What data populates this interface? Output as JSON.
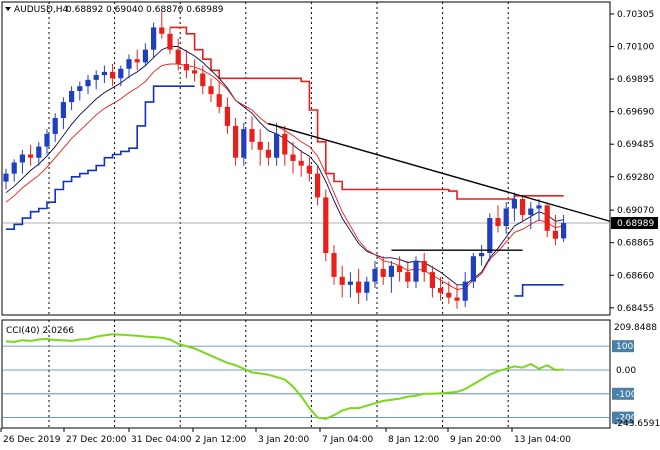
{
  "header": {
    "symbol": "AUDUSD,H4",
    "ohlc": "0.68892 0.69040 0.68870 0.68989"
  },
  "indicator": {
    "label": "CCI(40) 2.0266",
    "levels": [
      "100",
      "0.00",
      "-100",
      "-200"
    ],
    "max_label": "209.8488",
    "min_label": "-243.6591"
  },
  "colors": {
    "bull": "#1f3fbf",
    "bear": "#e8201c",
    "upper_band": "#e8201c",
    "lower_band": "#1030c0",
    "fast_ma": "#e8201c",
    "slow_ma": "#0a0a50",
    "cci": "#7cd61c",
    "trendline": "#000000",
    "price_tag": "#000000"
  },
  "chart_data": {
    "type": "candlestick",
    "y_axis_ticks": [
      "0.70305",
      "0.70100",
      "0.69895",
      "0.69690",
      "0.69485",
      "0.69280",
      "0.69070",
      "0.68865",
      "0.68660",
      "0.68455"
    ],
    "x_axis_labels": [
      "26 Dec 2019",
      "27 Dec 20:00",
      "31 Dec 04:00",
      "2 Jan 12:00",
      "3 Jan 20:00",
      "7 Jan 04:00",
      "8 Jan 12:00",
      "9 Jan 20:00",
      "13 Jan 04:00"
    ],
    "current_price": "0.68989",
    "ylim": [
      0.6841,
      0.7038
    ],
    "candles": [
      [
        0.6925,
        0.6933,
        0.692,
        0.693
      ],
      [
        0.693,
        0.6939,
        0.6925,
        0.6937
      ],
      [
        0.6937,
        0.6945,
        0.693,
        0.6942
      ],
      [
        0.6942,
        0.6948,
        0.6935,
        0.694
      ],
      [
        0.694,
        0.695,
        0.6935,
        0.6947
      ],
      [
        0.6947,
        0.6958,
        0.6942,
        0.6955
      ],
      [
        0.6955,
        0.6968,
        0.695,
        0.6965
      ],
      [
        0.6965,
        0.6978,
        0.6958,
        0.6975
      ],
      [
        0.6975,
        0.6985,
        0.697,
        0.6982
      ],
      [
        0.6982,
        0.6988,
        0.6976,
        0.6985
      ],
      [
        0.6985,
        0.6992,
        0.698,
        0.6989
      ],
      [
        0.6989,
        0.6995,
        0.6983,
        0.6992
      ],
      [
        0.6992,
        0.6998,
        0.6987,
        0.6994
      ],
      [
        0.6994,
        0.6999,
        0.6985,
        0.699
      ],
      [
        0.699,
        0.6998,
        0.6985,
        0.6996
      ],
      [
        0.6996,
        0.7005,
        0.699,
        0.7002
      ],
      [
        0.7002,
        0.7008,
        0.6995,
        0.7
      ],
      [
        0.7,
        0.7012,
        0.6998,
        0.7008
      ],
      [
        0.7008,
        0.7025,
        0.7003,
        0.7022
      ],
      [
        0.7022,
        0.7032,
        0.7015,
        0.7018
      ],
      [
        0.7018,
        0.7022,
        0.7005,
        0.7008
      ],
      [
        0.7008,
        0.7015,
        0.6995,
        0.6999
      ],
      [
        0.6999,
        0.7008,
        0.699,
        0.6995
      ],
      [
        0.6995,
        0.7002,
        0.6988,
        0.6993
      ],
      [
        0.6993,
        0.6998,
        0.698,
        0.6985
      ],
      [
        0.6985,
        0.699,
        0.6975,
        0.698
      ],
      [
        0.698,
        0.6988,
        0.6968,
        0.6972
      ],
      [
        0.6972,
        0.6978,
        0.6955,
        0.696
      ],
      [
        0.696,
        0.6965,
        0.6935,
        0.694
      ],
      [
        0.694,
        0.6962,
        0.6935,
        0.6958
      ],
      [
        0.6958,
        0.6966,
        0.6945,
        0.695
      ],
      [
        0.695,
        0.6958,
        0.6935,
        0.6945
      ],
      [
        0.6945,
        0.695,
        0.6935,
        0.694
      ],
      [
        0.694,
        0.6962,
        0.6935,
        0.6955
      ],
      [
        0.6955,
        0.696,
        0.6935,
        0.6942
      ],
      [
        0.6942,
        0.695,
        0.693,
        0.6938
      ],
      [
        0.6938,
        0.6945,
        0.6928,
        0.6935
      ],
      [
        0.6935,
        0.694,
        0.6925,
        0.693
      ],
      [
        0.693,
        0.6935,
        0.691,
        0.6915
      ],
      [
        0.6915,
        0.692,
        0.6875,
        0.688
      ],
      [
        0.688,
        0.6885,
        0.686,
        0.6865
      ],
      [
        0.6865,
        0.6872,
        0.6852,
        0.686
      ],
      [
        0.686,
        0.6868,
        0.6852,
        0.6862
      ],
      [
        0.6862,
        0.687,
        0.6848,
        0.6855
      ],
      [
        0.6855,
        0.6865,
        0.685,
        0.6862
      ],
      [
        0.6862,
        0.6875,
        0.6858,
        0.687
      ],
      [
        0.687,
        0.6878,
        0.686,
        0.6865
      ],
      [
        0.6865,
        0.6875,
        0.6855,
        0.6872
      ],
      [
        0.6872,
        0.6878,
        0.6862,
        0.6868
      ],
      [
        0.6868,
        0.6875,
        0.6858,
        0.6862
      ],
      [
        0.6862,
        0.6878,
        0.6858,
        0.6875
      ],
      [
        0.6875,
        0.688,
        0.6862,
        0.6868
      ],
      [
        0.6868,
        0.6872,
        0.6852,
        0.6858
      ],
      [
        0.6858,
        0.6865,
        0.685,
        0.6855
      ],
      [
        0.6855,
        0.6862,
        0.6848,
        0.6852
      ],
      [
        0.6852,
        0.686,
        0.6845,
        0.685
      ],
      [
        0.685,
        0.6868,
        0.6846,
        0.6862
      ],
      [
        0.6862,
        0.688,
        0.6858,
        0.6878
      ],
      [
        0.6878,
        0.6885,
        0.6872,
        0.688
      ],
      [
        0.688,
        0.6905,
        0.6875,
        0.6902
      ],
      [
        0.6902,
        0.691,
        0.6893,
        0.6897
      ],
      [
        0.6897,
        0.6912,
        0.6892,
        0.6908
      ],
      [
        0.6908,
        0.6918,
        0.69,
        0.6914
      ],
      [
        0.6914,
        0.6916,
        0.69,
        0.6904
      ],
      [
        0.6904,
        0.6912,
        0.6895,
        0.6908
      ],
      [
        0.6908,
        0.6914,
        0.69,
        0.691
      ],
      [
        0.691,
        0.6912,
        0.689,
        0.6894
      ],
      [
        0.6894,
        0.6904,
        0.6885,
        0.6889
      ],
      [
        0.68892,
        0.6904,
        0.6887,
        0.68989
      ]
    ],
    "fast_ma": [
      0.6912,
      0.6916,
      0.6921,
      0.6925,
      0.6929,
      0.6934,
      0.694,
      0.6946,
      0.6952,
      0.6957,
      0.6962,
      0.6967,
      0.6971,
      0.6974,
      0.6977,
      0.6981,
      0.6984,
      0.6988,
      0.6994,
      0.6998,
      0.6999,
      0.6999,
      0.6998,
      0.6997,
      0.6995,
      0.6992,
      0.6988,
      0.6983,
      0.6976,
      0.6973,
      0.697,
      0.6965,
      0.6961,
      0.696,
      0.6957,
      0.6954,
      0.695,
      0.6947,
      0.6941,
      0.693,
      0.6918,
      0.6906,
      0.6897,
      0.6888,
      0.6882,
      0.6879,
      0.6875,
      0.6874,
      0.6872,
      0.6869,
      0.687,
      0.6869,
      0.6866,
      0.6863,
      0.686,
      0.6857,
      0.6858,
      0.6863,
      0.6867,
      0.6876,
      0.6881,
      0.6887,
      0.6893,
      0.6895,
      0.6898,
      0.6901,
      0.6899,
      0.6896,
      0.6897
    ],
    "slow_ma": [
      0.6918,
      0.6922,
      0.6927,
      0.6932,
      0.6936,
      0.6941,
      0.6947,
      0.6954,
      0.6961,
      0.6967,
      0.6972,
      0.6977,
      0.6981,
      0.6984,
      0.6987,
      0.6991,
      0.6994,
      0.6998,
      0.7003,
      0.7008,
      0.701,
      0.701,
      0.7007,
      0.7004,
      0.7,
      0.6995,
      0.699,
      0.6984,
      0.6976,
      0.6972,
      0.6968,
      0.6962,
      0.6957,
      0.6955,
      0.6952,
      0.6948,
      0.6944,
      0.6941,
      0.6935,
      0.6925,
      0.6913,
      0.6902,
      0.6894,
      0.6886,
      0.6881,
      0.6879,
      0.6877,
      0.6877,
      0.6876,
      0.6874,
      0.6875,
      0.6874,
      0.6871,
      0.6868,
      0.6864,
      0.686,
      0.686,
      0.6864,
      0.6868,
      0.6877,
      0.6883,
      0.689,
      0.6897,
      0.69,
      0.6903,
      0.6906,
      0.6904,
      0.69,
      0.6901
    ],
    "upper_band": [
      null,
      null,
      null,
      null,
      null,
      null,
      null,
      null,
      null,
      null,
      null,
      null,
      null,
      null,
      null,
      null,
      null,
      null,
      null,
      null,
      0.7022,
      0.7022,
      0.7018,
      0.7008,
      0.7002,
      0.6995,
      0.699,
      0.699,
      0.699,
      0.699,
      0.699,
      0.699,
      0.699,
      0.699,
      0.699,
      0.699,
      0.6988,
      0.697,
      0.695,
      0.693,
      0.6925,
      0.692,
      0.692,
      0.692,
      0.692,
      0.692,
      0.692,
      0.692,
      0.692,
      0.692,
      0.692,
      0.692,
      0.692,
      0.692,
      0.6919,
      0.6914,
      0.6914,
      0.6914,
      0.6914,
      0.6914,
      0.6914,
      0.6914,
      0.6916,
      0.6916,
      0.6916,
      0.6916,
      0.6916,
      0.6916,
      0.6916
    ],
    "lower_band": [
      0.6895,
      0.6898,
      0.6902,
      0.6906,
      0.6908,
      0.6912,
      0.692,
      0.6925,
      0.6928,
      0.693,
      0.6932,
      0.6935,
      0.694,
      0.6942,
      0.6944,
      0.6946,
      0.696,
      0.6975,
      0.6985,
      0.6985,
      0.6985,
      0.6985,
      0.6985,
      0.6985,
      null,
      null,
      null,
      null,
      null,
      null,
      null,
      null,
      null,
      null,
      null,
      null,
      null,
      null,
      null,
      null,
      null,
      null,
      null,
      null,
      null,
      null,
      null,
      null,
      null,
      null,
      null,
      null,
      null,
      null,
      null,
      null,
      null,
      null,
      null,
      null,
      null,
      null,
      0.6853,
      0.686,
      0.686,
      0.686,
      0.686,
      0.686,
      0.686
    ],
    "cci": [
      120,
      118,
      125,
      122,
      128,
      130,
      126,
      124,
      122,
      128,
      130,
      140,
      145,
      150,
      148,
      146,
      144,
      140,
      138,
      135,
      128,
      110,
      100,
      90,
      75,
      60,
      45,
      30,
      20,
      5,
      -10,
      -15,
      -20,
      -30,
      -40,
      -70,
      -110,
      -160,
      -200,
      -205,
      -190,
      -170,
      -160,
      -160,
      -150,
      -140,
      -130,
      -125,
      -120,
      -112,
      -108,
      -100,
      -100,
      -98,
      -95,
      -92,
      -80,
      -60,
      -40,
      -20,
      -5,
      5,
      15,
      10,
      25,
      5,
      20,
      0,
      2
    ],
    "cci_ylim": [
      -243.6591,
      209.8488
    ],
    "trendlines": [
      {
        "from_index": 32,
        "from_price": 0.69615,
        "to_index": 78,
        "to_price": 0.69
      },
      {
        "from_index": 47,
        "from_price": 0.68818,
        "to_index": 63,
        "to_price": 0.68818
      }
    ]
  }
}
